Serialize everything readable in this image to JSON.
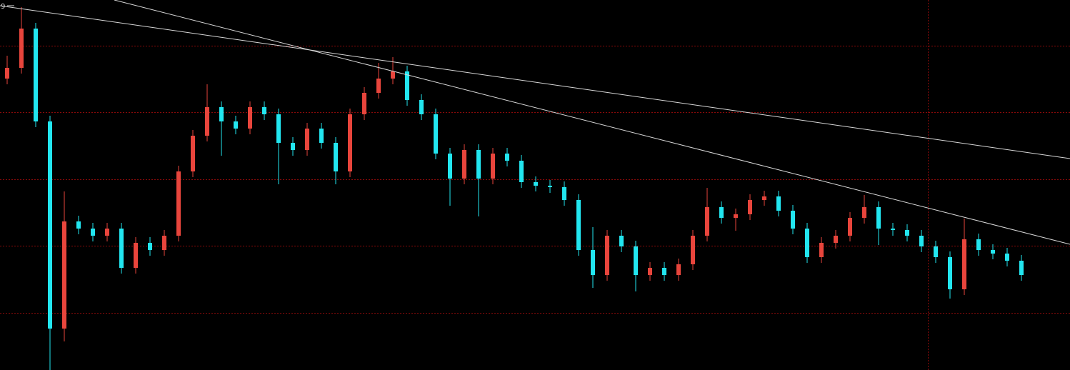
{
  "chart_data": {
    "type": "candlestick",
    "annotation": "9",
    "up_color": "#e8453c",
    "down_color": "#22e6f0",
    "ylim": [
      0,
      518
    ],
    "open": [
      408,
      423,
      478,
      348,
      58,
      208,
      198,
      188,
      198,
      143,
      178,
      168,
      188,
      278,
      328,
      368,
      348,
      338,
      368,
      358,
      318,
      308,
      338,
      318,
      278,
      358,
      388,
      408,
      418,
      378,
      358,
      303,
      268,
      308,
      268,
      303,
      293,
      263,
      258,
      256,
      238,
      168,
      133,
      188,
      173,
      133,
      143,
      133,
      148,
      188,
      228,
      213,
      218,
      238,
      243,
      223,
      198,
      158,
      178,
      188,
      213,
      228,
      198,
      196,
      188,
      173,
      158,
      113,
      183,
      168,
      163,
      153
    ],
    "high": [
      440,
      508,
      486,
      356,
      250,
      216,
      206,
      206,
      206,
      186,
      186,
      196,
      286,
      336,
      400,
      376,
      356,
      376,
      376,
      366,
      326,
      346,
      346,
      326,
      366,
      396,
      430,
      438,
      426,
      386,
      366,
      311,
      316,
      316,
      311,
      311,
      301,
      271,
      266,
      264,
      246,
      200,
      196,
      196,
      181,
      151,
      151,
      156,
      196,
      255,
      236,
      226,
      246,
      251,
      251,
      231,
      206,
      186,
      196,
      221,
      245,
      236,
      206,
      204,
      196,
      181,
      166,
      212,
      191,
      176,
      171,
      161
    ],
    "low": [
      400,
      415,
      340,
      0,
      40,
      190,
      180,
      180,
      135,
      135,
      160,
      160,
      180,
      270,
      320,
      300,
      330,
      330,
      350,
      260,
      300,
      300,
      310,
      260,
      270,
      350,
      380,
      400,
      370,
      350,
      295,
      230,
      260,
      215,
      260,
      285,
      255,
      250,
      248,
      230,
      160,
      115,
      125,
      165,
      110,
      125,
      125,
      125,
      140,
      180,
      205,
      195,
      210,
      230,
      215,
      190,
      150,
      150,
      170,
      180,
      205,
      175,
      188,
      180,
      165,
      150,
      100,
      105,
      160,
      155,
      145,
      125
    ],
    "close": [
      423,
      478,
      348,
      58,
      208,
      198,
      188,
      198,
      143,
      178,
      168,
      188,
      278,
      328,
      368,
      348,
      338,
      368,
      358,
      318,
      308,
      338,
      318,
      278,
      358,
      388,
      408,
      418,
      378,
      358,
      303,
      268,
      308,
      268,
      303,
      293,
      263,
      258,
      256,
      238,
      168,
      133,
      188,
      173,
      133,
      143,
      133,
      148,
      188,
      228,
      213,
      218,
      238,
      243,
      223,
      198,
      158,
      178,
      188,
      213,
      228,
      198,
      196,
      188,
      173,
      158,
      113,
      183,
      168,
      163,
      153,
      133
    ]
  }
}
